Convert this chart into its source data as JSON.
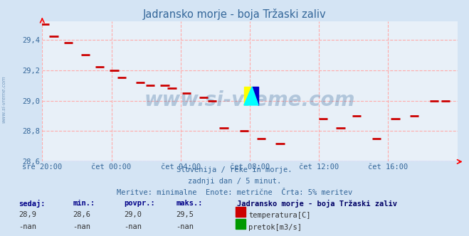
{
  "title": "Jadransko morje - boja Tržaski zaliv",
  "title_color": "#336699",
  "bg_color": "#d4e4f4",
  "plot_bg_color": "#e8f0f8",
  "grid_color": "#ffaaaa",
  "tick_color": "#336699",
  "watermark": "www.si-vreme.com",
  "watermark_color": "#336699",
  "subtitle1": "Slovenija / reke in morje.",
  "subtitle2": "zadnji dan / 5 minut.",
  "subtitle3": "Meritve: minimalne  Enote: metrične  Črta: 5% meritev",
  "subtitle_color": "#336699",
  "legend_title": "Jadransko morje - boja Tržaski zaliv",
  "legend_title_color": "#000066",
  "label_temperatura": "temperatura[C]",
  "label_pretok": "pretok[m3/s]",
  "color_temperatura": "#cc0000",
  "color_pretok": "#009900",
  "stats_labels": [
    "sedaj:",
    "min.:",
    "povpr.:",
    "maks.:"
  ],
  "stats_values_temp": [
    "28,9",
    "28,6",
    "29,0",
    "29,5"
  ],
  "stats_values_pretok": [
    "-nan",
    "-nan",
    "-nan",
    "-nan"
  ],
  "xlim": [
    0,
    288
  ],
  "ylim": [
    28.6,
    29.52
  ],
  "yticks": [
    28.6,
    28.8,
    29.0,
    29.2,
    29.4
  ],
  "xtick_positions": [
    0,
    48,
    96,
    144,
    192,
    240
  ],
  "xtick_labels": [
    "sre 20:00",
    "čet 00:00",
    "čet 04:00",
    "čet 08:00",
    "čet 12:00",
    "čet 16:00"
  ],
  "temp_data_x": [
    2,
    8,
    18,
    30,
    40,
    50,
    55,
    68,
    75,
    85,
    90,
    100,
    112,
    118,
    126,
    140,
    152,
    165,
    195,
    207,
    218,
    232,
    245,
    258,
    272,
    280
  ],
  "temp_data_y": [
    29.5,
    29.42,
    29.38,
    29.3,
    29.22,
    29.2,
    29.15,
    29.12,
    29.1,
    29.1,
    29.08,
    29.05,
    29.02,
    29.0,
    28.82,
    28.8,
    28.75,
    28.72,
    28.88,
    28.82,
    28.9,
    28.75,
    28.88,
    28.9,
    29.0,
    29.0
  ]
}
